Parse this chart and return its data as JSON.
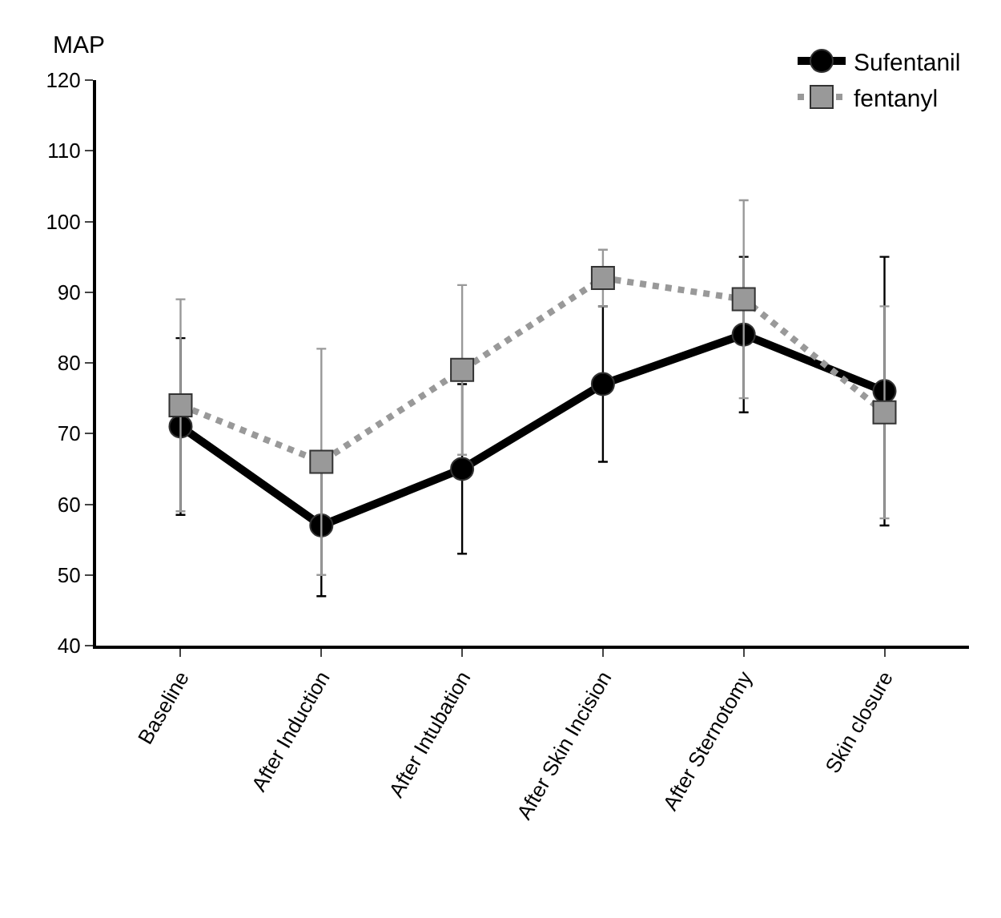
{
  "chart_data": {
    "type": "line",
    "ylabel": "MAP",
    "categories": [
      "Baseline",
      "After Induction",
      "After Intubation",
      "After Skin Incision",
      "After Sternotomy",
      "Skin closure"
    ],
    "series": [
      {
        "name": "Sufentanil",
        "color": "#000000",
        "values": [
          71,
          57,
          65,
          77,
          84,
          76
        ],
        "errors": [
          12.5,
          10,
          12,
          11,
          11,
          19
        ],
        "marker": "circle",
        "line_style": "solid"
      },
      {
        "name": "fentanyl",
        "color": "#999999",
        "values": [
          74,
          66,
          79,
          92,
          89,
          73
        ],
        "errors": [
          15,
          16,
          12,
          4,
          14,
          15
        ],
        "marker": "square",
        "line_style": "dotted"
      }
    ],
    "ylim": [
      40,
      120
    ],
    "yticks": [
      40,
      50,
      60,
      70,
      80,
      90,
      100,
      110,
      120
    ],
    "legend": "top right"
  }
}
